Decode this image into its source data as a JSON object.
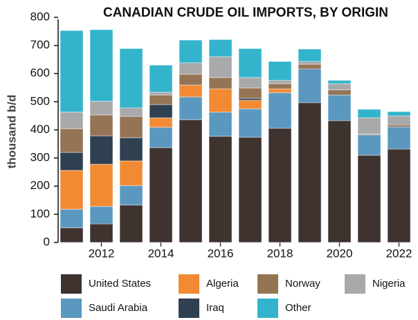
{
  "chart_data": {
    "type": "stacked_bar",
    "title": "CANADIAN CRUDE OIL IMPORTS, BY ORIGIN",
    "y_label": "thousand b/d",
    "categories": [
      null,
      "2012",
      null,
      "2014",
      null,
      "2016",
      null,
      "2018",
      null,
      "2020",
      null,
      "2022"
    ],
    "series": [
      {
        "name": "United States",
        "color": "#3f3330",
        "values": [
          52,
          66,
          133,
          337,
          436,
          377,
          374,
          406,
          497,
          433,
          310,
          332
        ]
      },
      {
        "name": "Saudi Arabia",
        "color": "#5b98c0",
        "values": [
          66,
          62,
          69,
          72,
          81,
          86,
          101,
          126,
          119,
          91,
          72,
          79
        ]
      },
      {
        "name": "Algeria",
        "color": "#f28a33",
        "values": [
          138,
          150,
          88,
          34,
          42,
          83,
          30,
          14,
          0,
          0,
          0,
          0
        ]
      },
      {
        "name": "Iraq",
        "color": "#2f4050",
        "values": [
          64,
          101,
          82,
          47,
          0,
          0,
          7,
          0,
          0,
          0,
          0,
          0
        ]
      },
      {
        "name": "Norway",
        "color": "#957456",
        "values": [
          84,
          74,
          76,
          34,
          39,
          40,
          37,
          18,
          17,
          18,
          3,
          7
        ]
      },
      {
        "name": "Nigeria",
        "color": "#a8a9ab",
        "values": [
          59,
          49,
          30,
          10,
          40,
          74,
          37,
          12,
          10,
          22,
          58,
          32
        ]
      },
      {
        "name": "Other",
        "color": "#33b4cc",
        "values": [
          290,
          254,
          211,
          96,
          81,
          61,
          103,
          67,
          44,
          12,
          30,
          15
        ]
      }
    ],
    "ylim": [
      0,
      800
    ],
    "yticks": [
      0,
      100,
      200,
      300,
      400,
      500,
      600,
      700,
      800
    ]
  }
}
